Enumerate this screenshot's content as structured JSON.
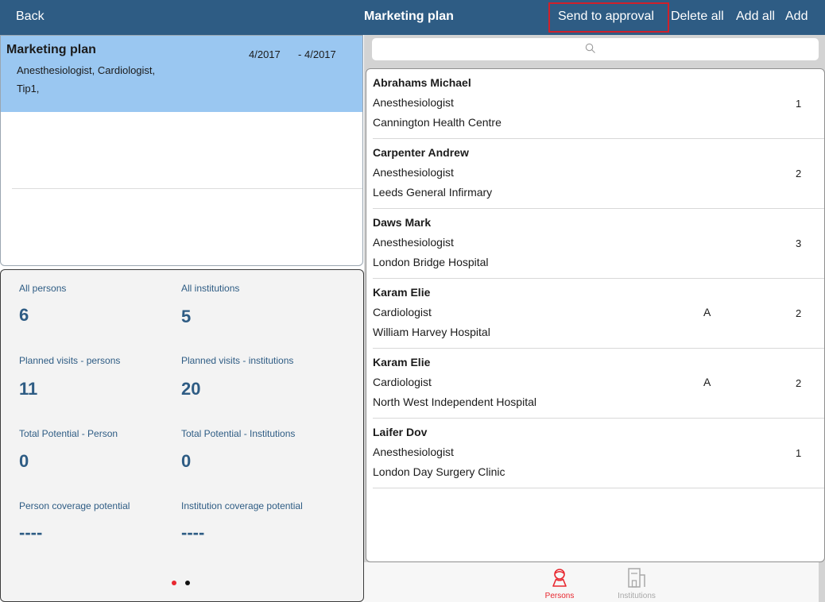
{
  "navbar": {
    "back": "Back",
    "title": "Marketing plan",
    "send_to_approval": "Send to approval",
    "delete_all": "Delete all",
    "add_all": "Add all",
    "add": "Add",
    "highlight_color": "#d0202a",
    "bar_color": "#2e5c84"
  },
  "plan": {
    "name": "Marketing plan",
    "date_from": "4/2017",
    "date_dash": "-",
    "date_to": "4/2017",
    "specialties": "Anesthesiologist, Cardiologist,",
    "tips": "Tip1,",
    "selected_color": "#9ac7f1"
  },
  "stats": {
    "all_persons_label": "All persons",
    "all_persons_value": "6",
    "all_institutions_label": "All institutions",
    "all_institutions_value": "5",
    "planned_persons_label": "Planned visits - persons",
    "planned_persons_value": "11",
    "planned_institutions_label": "Planned visits - institutions",
    "planned_institutions_value": "20",
    "potential_person_label": "Total Potential - Person",
    "potential_person_value": "0",
    "potential_institutions_label": "Total Potential - Institutions",
    "potential_institutions_value": "0",
    "person_coverage_label": "Person coverage potential",
    "person_coverage_value": "----",
    "institution_coverage_label": "Institution coverage potential",
    "institution_coverage_value": "----",
    "page_indicator": {
      "active": 1,
      "total": 2
    }
  },
  "search": {
    "icon": "search-icon"
  },
  "persons": [
    {
      "name": "Abrahams Michael",
      "specialty": "Anesthesiologist",
      "institution": "Cannington Health Centre",
      "flag": "",
      "count": "1"
    },
    {
      "name": "Carpenter Andrew",
      "specialty": "Anesthesiologist",
      "institution": "Leeds General Infirmary",
      "flag": "",
      "count": "2"
    },
    {
      "name": "Daws Mark",
      "specialty": "Anesthesiologist",
      "institution": "London Bridge Hospital",
      "flag": "",
      "count": "3"
    },
    {
      "name": "Karam Elie",
      "specialty": "Cardiologist",
      "institution": "William Harvey Hospital",
      "flag": "A",
      "count": "2"
    },
    {
      "name": "Karam Elie",
      "specialty": "Cardiologist",
      "institution": "North West Independent Hospital",
      "flag": "A",
      "count": "2"
    },
    {
      "name": "Laifer Dov",
      "specialty": "Anesthesiologist",
      "institution": "London Day Surgery Clinic",
      "flag": "",
      "count": "1"
    }
  ],
  "tabs": [
    {
      "label": "Persons",
      "icon": "person-icon",
      "active": true,
      "color": "#e8272f"
    },
    {
      "label": "Institutions",
      "icon": "building-icon",
      "active": false,
      "color": "#a8a8a8"
    }
  ]
}
